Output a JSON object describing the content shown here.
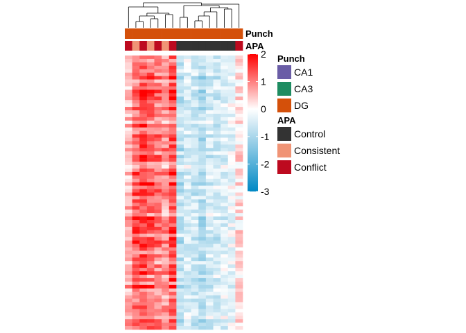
{
  "chart_data": {
    "type": "heatmap",
    "row_count": 80,
    "columns": [
      {
        "punch": "DG",
        "apa": "Conflict",
        "profile": 0.55
      },
      {
        "punch": "DG",
        "apa": "Consistent",
        "profile": 1.15
      },
      {
        "punch": "DG",
        "apa": "Conflict",
        "profile": 1.35
      },
      {
        "punch": "DG",
        "apa": "Consistent",
        "profile": 1.2
      },
      {
        "punch": "DG",
        "apa": "Conflict",
        "profile": 1.0
      },
      {
        "punch": "DG",
        "apa": "Consistent",
        "profile": 0.75
      },
      {
        "punch": "DG",
        "apa": "Conflict",
        "profile": 1.25
      },
      {
        "punch": "DG",
        "apa": "Control",
        "profile": -0.7
      },
      {
        "punch": "DG",
        "apa": "Control",
        "profile": -0.4
      },
      {
        "punch": "DG",
        "apa": "Control",
        "profile": -0.55
      },
      {
        "punch": "DG",
        "apa": "Control",
        "profile": -0.8
      },
      {
        "punch": "DG",
        "apa": "Control",
        "profile": -0.45
      },
      {
        "punch": "DG",
        "apa": "Control",
        "profile": -0.5
      },
      {
        "punch": "DG",
        "apa": "Control",
        "profile": -0.35
      },
      {
        "punch": "DG",
        "apa": "Control",
        "profile": -0.2
      },
      {
        "punch": "DG",
        "apa": "Conflict",
        "profile": 0.2
      }
    ],
    "color_scale": {
      "min": -3,
      "max": 2,
      "ticks": [
        2,
        1,
        0,
        -1,
        -2,
        -3
      ],
      "colors": {
        "low": "#0088c4",
        "mid": "#ffffff",
        "high": "#ff0000"
      }
    },
    "annotation_tracks": [
      "Punch",
      "APA"
    ],
    "legends": [
      {
        "title": "Punch",
        "items": [
          {
            "label": "CA1",
            "color": "#6A5DA6"
          },
          {
            "label": "CA3",
            "color": "#1E8C61"
          },
          {
            "label": "DG",
            "color": "#D4500A"
          }
        ]
      },
      {
        "title": "APA",
        "items": [
          {
            "label": "Control",
            "color": "#333333"
          },
          {
            "label": "Consistent",
            "color": "#F09476"
          },
          {
            "label": "Conflict",
            "color": "#BD0A1F"
          }
        ]
      }
    ]
  }
}
